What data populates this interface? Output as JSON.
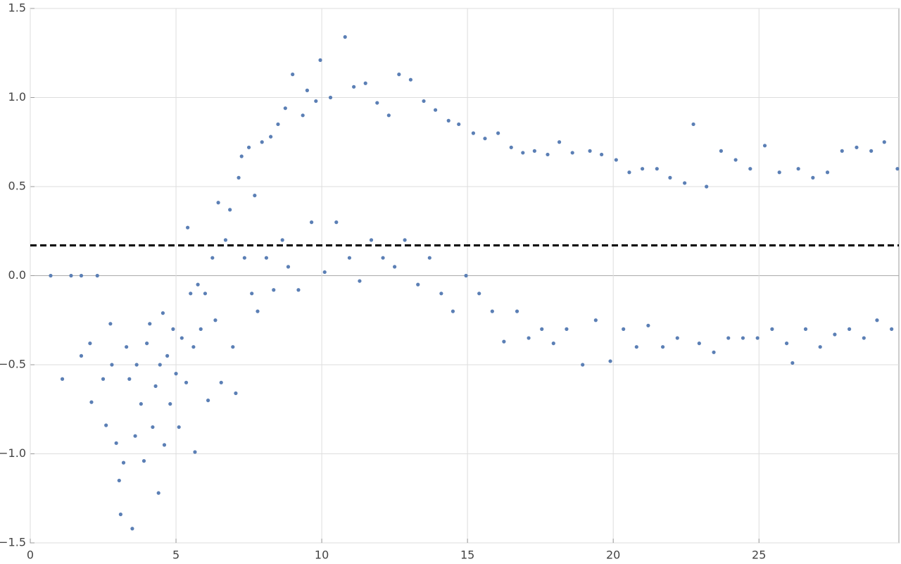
{
  "chart_data": {
    "type": "scatter",
    "color": "#5b7fb5",
    "grid": true,
    "xlim": [
      0,
      29.8
    ],
    "ylim": [
      -1.5,
      1.5
    ],
    "xticks": [
      0,
      5,
      10,
      15,
      20,
      25
    ],
    "yticks": [
      {
        "value": -1.5,
        "label": "−1.5"
      },
      {
        "value": -1.0,
        "label": "−1.0"
      },
      {
        "value": -0.5,
        "label": "−0.5"
      },
      {
        "value": 0,
        "label": "0.0"
      },
      {
        "value": 0.5,
        "label": "0.5"
      },
      {
        "value": 1.0,
        "label": "1.0"
      },
      {
        "value": 1.5,
        "label": "1.5"
      }
    ],
    "reference_line": {
      "value": 0.17,
      "color": "#000000"
    },
    "x": [
      0.7,
      1.4,
      1.75,
      2.3,
      1.1,
      1.75,
      2.05,
      2.1,
      2.5,
      2.6,
      2.75,
      2.8,
      2.95,
      3.05,
      3.1,
      3.2,
      3.3,
      3.4,
      3.5,
      3.6,
      3.65,
      3.8,
      3.9,
      4.0,
      4.1,
      4.2,
      4.3,
      4.4,
      4.45,
      4.55,
      4.6,
      4.7,
      4.8,
      4.9,
      5.0,
      5.1,
      5.2,
      5.35,
      5.4,
      5.5,
      5.6,
      5.65,
      5.75,
      5.85,
      6.0,
      6.1,
      6.25,
      6.35,
      6.45,
      6.55,
      6.7,
      6.85,
      6.95,
      7.05,
      7.15,
      7.25,
      7.35,
      7.5,
      7.6,
      7.7,
      7.8,
      7.95,
      8.1,
      8.25,
      8.35,
      8.5,
      8.65,
      8.75,
      8.85,
      9.0,
      9.2,
      9.35,
      9.5,
      9.65,
      9.8,
      9.95,
      10.1,
      10.3,
      10.5,
      10.8,
      10.95,
      11.1,
      11.3,
      11.5,
      11.7,
      11.9,
      12.1,
      12.3,
      12.5,
      12.65,
      12.85,
      13.05,
      13.3,
      13.5,
      13.7,
      13.9,
      14.1,
      14.35,
      14.5,
      14.7,
      14.95,
      15.2,
      15.4,
      15.6,
      15.85,
      16.05,
      16.25,
      16.5,
      16.7,
      16.9,
      17.1,
      17.3,
      17.55,
      17.75,
      17.95,
      18.15,
      18.4,
      18.6,
      18.95,
      19.2,
      19.4,
      19.6,
      19.9,
      20.1,
      20.35,
      20.55,
      20.8,
      21.0,
      21.2,
      21.5,
      21.7,
      21.95,
      22.2,
      22.45,
      22.75,
      22.95,
      23.2,
      23.45,
      23.7,
      23.95,
      24.2,
      24.45,
      24.7,
      24.95,
      25.2,
      25.45,
      25.7,
      25.95,
      26.15,
      26.35,
      26.6,
      26.85,
      27.1,
      27.35,
      27.6,
      27.85,
      28.1,
      28.35,
      28.6,
      28.85,
      29.05,
      29.3,
      29.55,
      29.75
    ],
    "values": [
      0,
      0,
      0,
      0,
      -0.58,
      -0.45,
      -0.38,
      -0.71,
      -0.58,
      -0.84,
      -0.27,
      -0.5,
      -0.94,
      -1.15,
      -1.34,
      -1.05,
      -0.4,
      -0.58,
      -1.42,
      -0.9,
      -0.5,
      -0.72,
      -1.04,
      -0.38,
      -0.27,
      -0.85,
      -0.62,
      -1.22,
      -0.5,
      -0.21,
      -0.95,
      -0.45,
      -0.72,
      -0.3,
      -0.55,
      -0.85,
      -0.35,
      -0.6,
      0.27,
      -0.1,
      -0.4,
      -0.99,
      -0.05,
      -0.3,
      -0.1,
      -0.7,
      0.1,
      -0.25,
      0.41,
      -0.6,
      0.2,
      0.37,
      -0.4,
      -0.66,
      0.55,
      0.67,
      0.1,
      0.72,
      -0.1,
      0.45,
      -0.2,
      0.75,
      0.1,
      0.78,
      -0.08,
      0.85,
      0.2,
      0.94,
      0.05,
      1.13,
      -0.08,
      0.9,
      1.04,
      0.3,
      0.98,
      1.21,
      0.02,
      1.0,
      0.3,
      1.34,
      0.1,
      1.06,
      -0.03,
      1.08,
      0.2,
      0.97,
      0.1,
      0.9,
      0.05,
      1.13,
      0.2,
      1.1,
      -0.05,
      0.98,
      0.1,
      0.93,
      -0.1,
      0.87,
      -0.2,
      0.85,
      0.0,
      0.8,
      -0.1,
      0.77,
      -0.2,
      0.8,
      -0.37,
      0.72,
      -0.2,
      0.69,
      -0.35,
      0.7,
      -0.3,
      0.68,
      -0.38,
      0.75,
      -0.3,
      0.69,
      -0.5,
      0.7,
      -0.25,
      0.68,
      -0.48,
      0.65,
      -0.3,
      0.58,
      -0.4,
      0.6,
      -0.28,
      0.6,
      -0.4,
      0.55,
      -0.35,
      0.52,
      0.85,
      -0.38,
      0.5,
      -0.43,
      0.7,
      -0.35,
      0.65,
      -0.35,
      0.6,
      -0.35,
      0.73,
      -0.3,
      0.58,
      -0.38,
      -0.49,
      0.6,
      -0.3,
      0.55,
      -0.4,
      0.58,
      -0.33,
      0.7,
      -0.3,
      0.72,
      -0.35,
      0.7,
      -0.25,
      0.75,
      -0.3,
      0.6
    ]
  }
}
